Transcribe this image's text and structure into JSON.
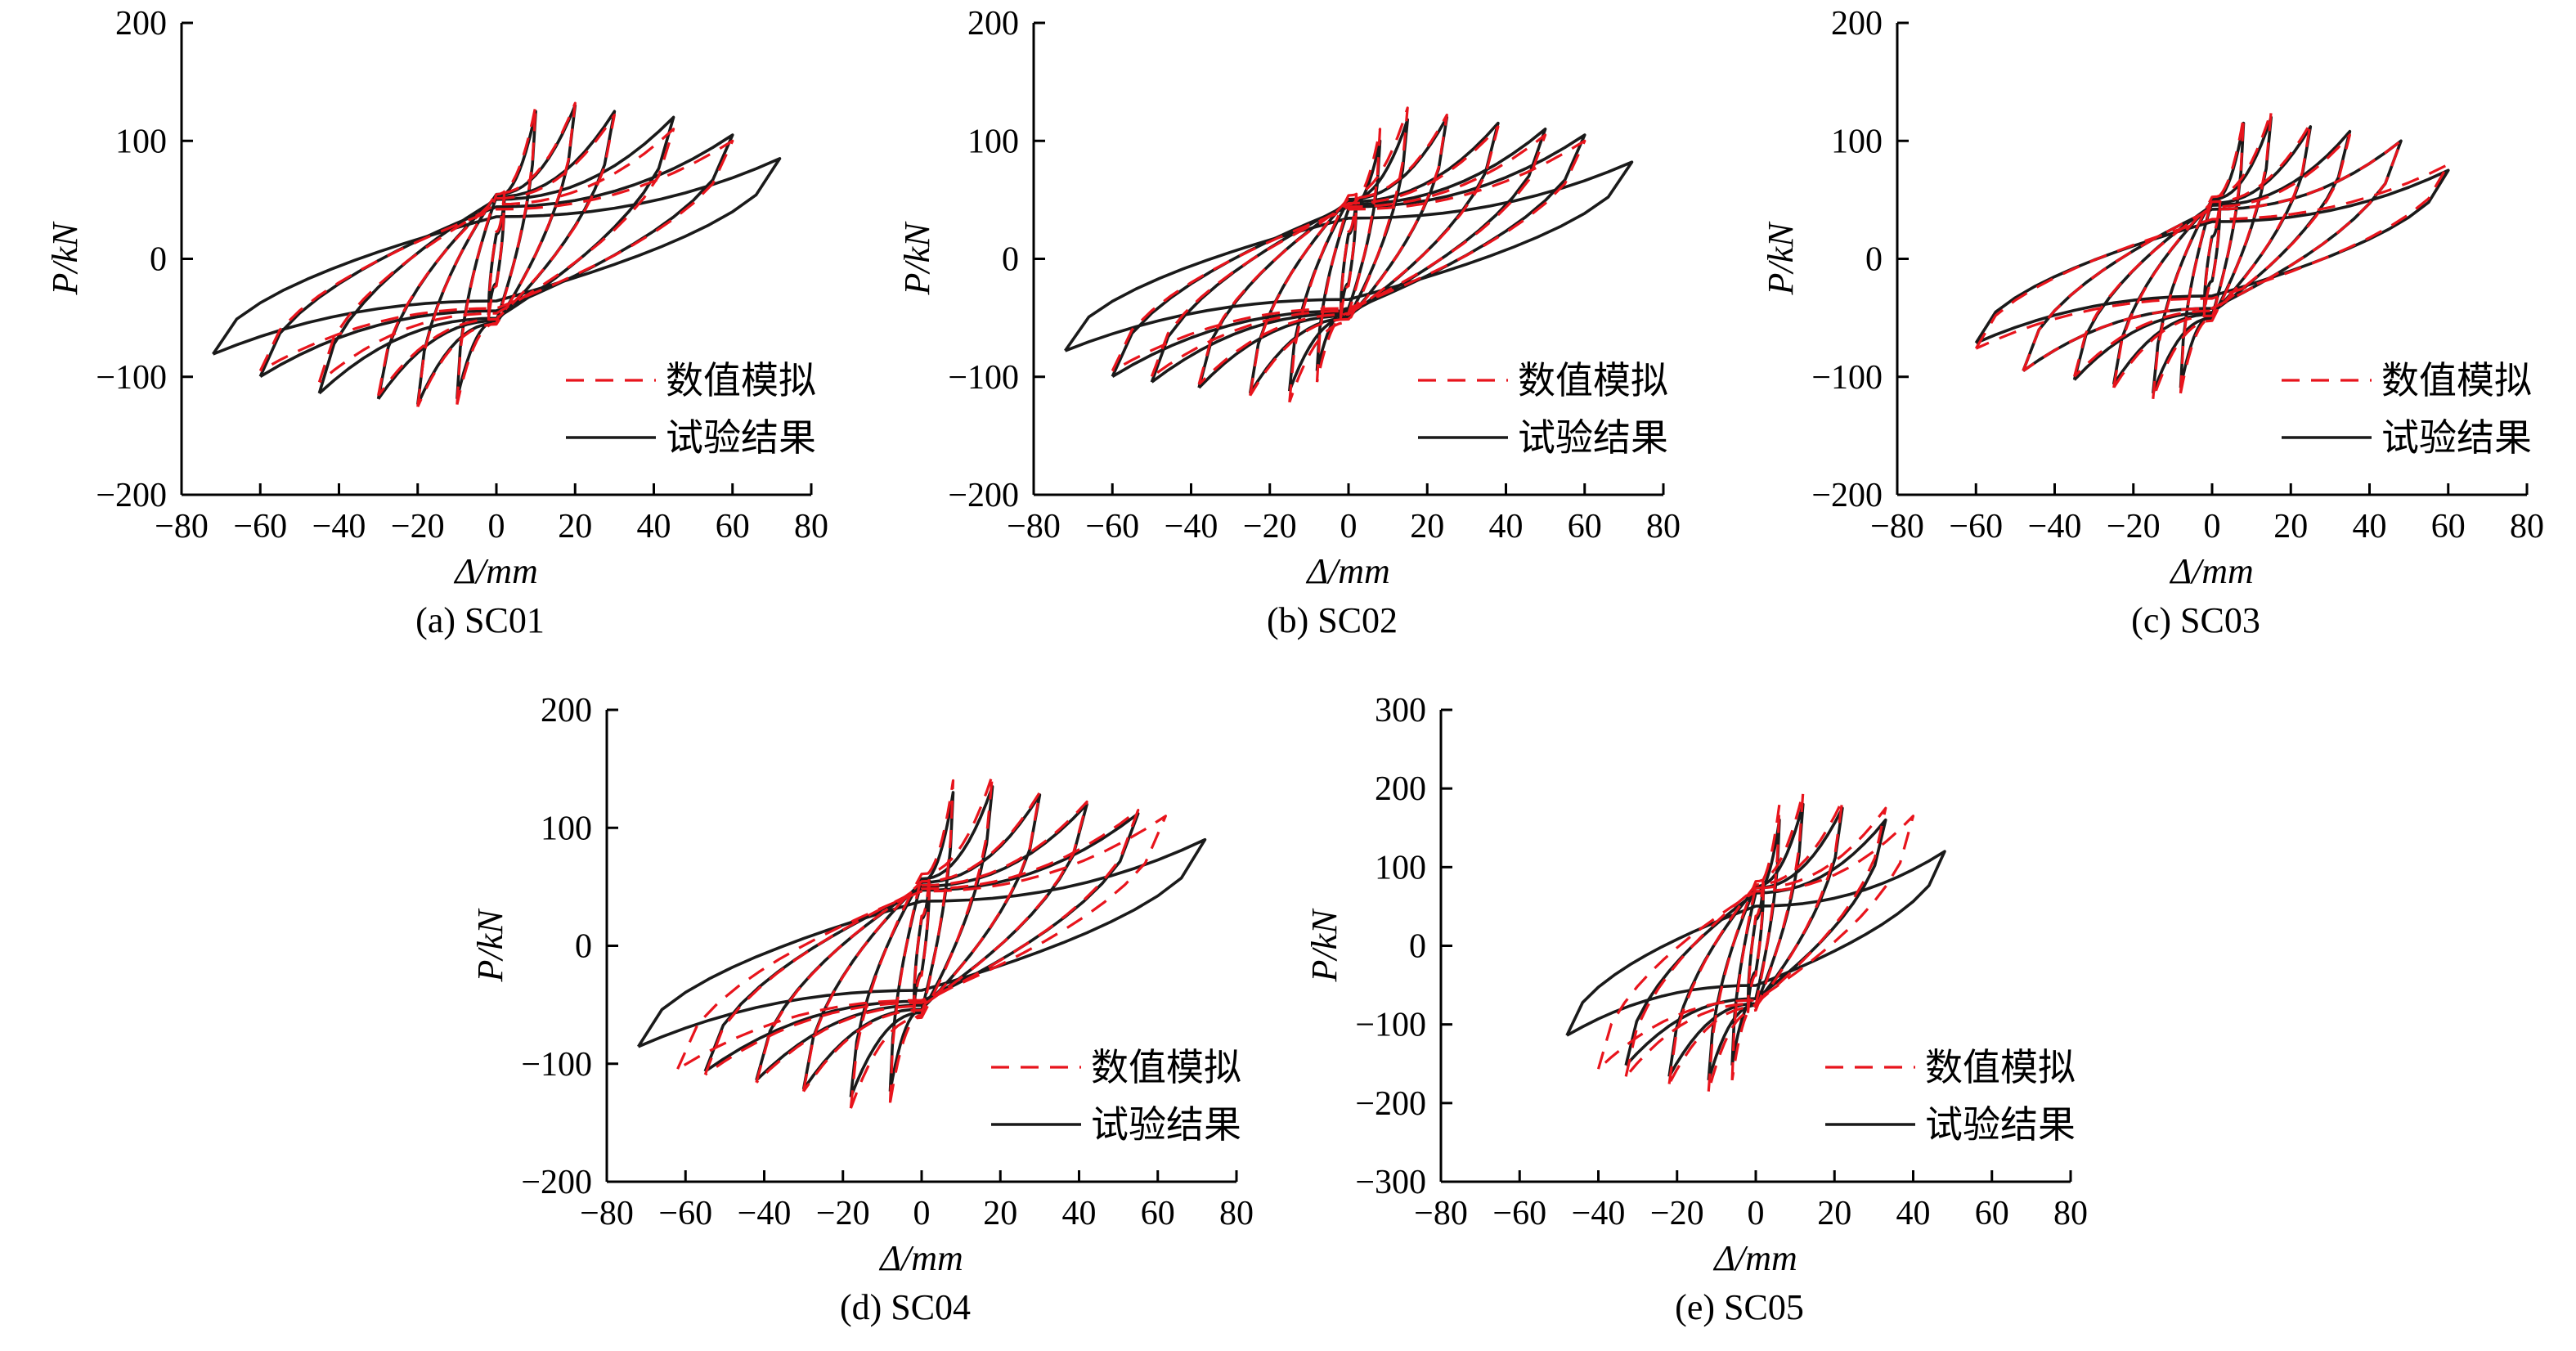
{
  "figure": {
    "legend": {
      "numerical": {
        "label": "数值模拟",
        "color": "#e8141c",
        "style": "dashed"
      },
      "test": {
        "label": "试验结果",
        "color": "#1a1a1a",
        "style": "solid"
      }
    }
  },
  "chart_data": [
    {
      "id": "a",
      "type": "line",
      "caption": "(a) SC01",
      "xlabel": "Δ/mm",
      "ylabel": "P/kN",
      "xlim": [
        -80,
        80
      ],
      "ylim": [
        -200,
        200
      ],
      "xticks": [
        "−80",
        "−60",
        "−40",
        "−20",
        "0",
        "20",
        "40",
        "60",
        "80"
      ],
      "yticks": [
        "200",
        "100",
        "0",
        "−100",
        "−200"
      ],
      "grid": false,
      "legend_position": "bottom-right",
      "series": [
        {
          "name": "试验结果",
          "loops": [
            {
              "amp": 2,
              "peak": 50
            },
            {
              "amp": 10,
              "peak": 125
            },
            {
              "amp": 20,
              "peak": 130
            },
            {
              "amp": 30,
              "peak": 125
            },
            {
              "amp": 45,
              "peak": 120
            },
            {
              "amp": 60,
              "peak": 105
            },
            {
              "amp": 72,
              "peak": 85
            }
          ]
        },
        {
          "name": "数值模拟",
          "loops": [
            {
              "amp": 2,
              "peak": 55
            },
            {
              "amp": 10,
              "peak": 130
            },
            {
              "amp": 20,
              "peak": 132
            },
            {
              "amp": 30,
              "peak": 122
            },
            {
              "amp": 45,
              "peak": 110
            },
            {
              "amp": 60,
              "peak": 100
            }
          ]
        }
      ]
    },
    {
      "id": "b",
      "type": "line",
      "caption": "(b) SC02",
      "xlabel": "Δ/mm",
      "ylabel": "P/kN",
      "xlim": [
        -80,
        80
      ],
      "ylim": [
        -200,
        200
      ],
      "xticks": [
        "−80",
        "−60",
        "−40",
        "−20",
        "0",
        "20",
        "40",
        "60",
        "80"
      ],
      "yticks": [
        "200",
        "100",
        "0",
        "−100",
        "−200"
      ],
      "grid": false,
      "legend_position": "bottom-right",
      "series": [
        {
          "name": "试验结果",
          "loops": [
            {
              "amp": 2,
              "peak": 50
            },
            {
              "amp": 8,
              "peak": 100
            },
            {
              "amp": 15,
              "peak": 118
            },
            {
              "amp": 25,
              "peak": 120
            },
            {
              "amp": 38,
              "peak": 115
            },
            {
              "amp": 50,
              "peak": 110
            },
            {
              "amp": 60,
              "peak": 105
            },
            {
              "amp": 72,
              "peak": 82
            }
          ]
        },
        {
          "name": "数值模拟",
          "loops": [
            {
              "amp": 2,
              "peak": 55
            },
            {
              "amp": 8,
              "peak": 110
            },
            {
              "amp": 15,
              "peak": 128
            },
            {
              "amp": 25,
              "peak": 122
            },
            {
              "amp": 38,
              "peak": 112
            },
            {
              "amp": 50,
              "peak": 105
            },
            {
              "amp": 60,
              "peak": 100
            }
          ]
        }
      ]
    },
    {
      "id": "c",
      "type": "line",
      "caption": "(c) SC03",
      "xlabel": "Δ/mm",
      "ylabel": "P/kN",
      "xlim": [
        -80,
        80
      ],
      "ylim": [
        -200,
        200
      ],
      "xticks": [
        "−80",
        "−60",
        "−40",
        "−20",
        "0",
        "20",
        "40",
        "60",
        "80"
      ],
      "yticks": [
        "200",
        "100",
        "0",
        "−100",
        "−200"
      ],
      "grid": false,
      "legend_position": "bottom-right",
      "series": [
        {
          "name": "试验结果",
          "loops": [
            {
              "amp": 2,
              "peak": 45
            },
            {
              "amp": 8,
              "peak": 115
            },
            {
              "amp": 15,
              "peak": 120
            },
            {
              "amp": 25,
              "peak": 112
            },
            {
              "amp": 35,
              "peak": 108
            },
            {
              "amp": 48,
              "peak": 100
            },
            {
              "amp": 60,
              "peak": 75
            }
          ]
        },
        {
          "name": "数值模拟",
          "loops": [
            {
              "amp": 2,
              "peak": 50
            },
            {
              "amp": 8,
              "peak": 120
            },
            {
              "amp": 15,
              "peak": 125
            },
            {
              "amp": 25,
              "peak": 115
            },
            {
              "amp": 35,
              "peak": 105
            },
            {
              "amp": 48,
              "peak": 100
            },
            {
              "amp": 60,
              "peak": 80
            }
          ]
        }
      ]
    },
    {
      "id": "d",
      "type": "line",
      "caption": "(d) SC04",
      "xlabel": "Δ/mm",
      "ylabel": "P/kN",
      "xlim": [
        -80,
        80
      ],
      "ylim": [
        -200,
        200
      ],
      "xticks": [
        "−80",
        "−60",
        "−40",
        "−20",
        "0",
        "20",
        "40",
        "60",
        "80"
      ],
      "yticks": [
        "200",
        "100",
        "0",
        "−100",
        "−200"
      ],
      "grid": false,
      "legend_position": "bottom-right",
      "series": [
        {
          "name": "试验结果",
          "loops": [
            {
              "amp": 2,
              "peak": 55
            },
            {
              "amp": 8,
              "peak": 130
            },
            {
              "amp": 18,
              "peak": 135
            },
            {
              "amp": 30,
              "peak": 128
            },
            {
              "amp": 42,
              "peak": 120
            },
            {
              "amp": 55,
              "peak": 112
            },
            {
              "amp": 72,
              "peak": 90
            }
          ]
        },
        {
          "name": "数值模拟",
          "loops": [
            {
              "amp": 2,
              "peak": 60
            },
            {
              "amp": 8,
              "peak": 140
            },
            {
              "amp": 18,
              "peak": 145
            },
            {
              "amp": 30,
              "peak": 130
            },
            {
              "amp": 42,
              "peak": 122
            },
            {
              "amp": 55,
              "peak": 115
            },
            {
              "amp": 62,
              "peak": 110
            }
          ]
        }
      ]
    },
    {
      "id": "e",
      "type": "line",
      "caption": "(e) SC05",
      "xlabel": "Δ/mm",
      "ylabel": "P/kN",
      "xlim": [
        -80,
        80
      ],
      "ylim": [
        -300,
        300
      ],
      "xticks": [
        "−80",
        "−60",
        "−40",
        "−20",
        "0",
        "20",
        "40",
        "60",
        "80"
      ],
      "yticks": [
        "300",
        "200",
        "100",
        "0",
        "−100",
        "−200",
        "−300"
      ],
      "grid": false,
      "legend_position": "bottom-right",
      "series": [
        {
          "name": "试验结果",
          "loops": [
            {
              "amp": 2,
              "peak": 80
            },
            {
              "amp": 6,
              "peak": 160
            },
            {
              "amp": 12,
              "peak": 180
            },
            {
              "amp": 22,
              "peak": 175
            },
            {
              "amp": 33,
              "peak": 160
            },
            {
              "amp": 48,
              "peak": 120
            }
          ]
        },
        {
          "name": "数值模拟",
          "loops": [
            {
              "amp": 2,
              "peak": 90
            },
            {
              "amp": 6,
              "peak": 180
            },
            {
              "amp": 12,
              "peak": 195
            },
            {
              "amp": 22,
              "peak": 185
            },
            {
              "amp": 33,
              "peak": 175
            },
            {
              "amp": 40,
              "peak": 165
            }
          ]
        }
      ]
    }
  ]
}
